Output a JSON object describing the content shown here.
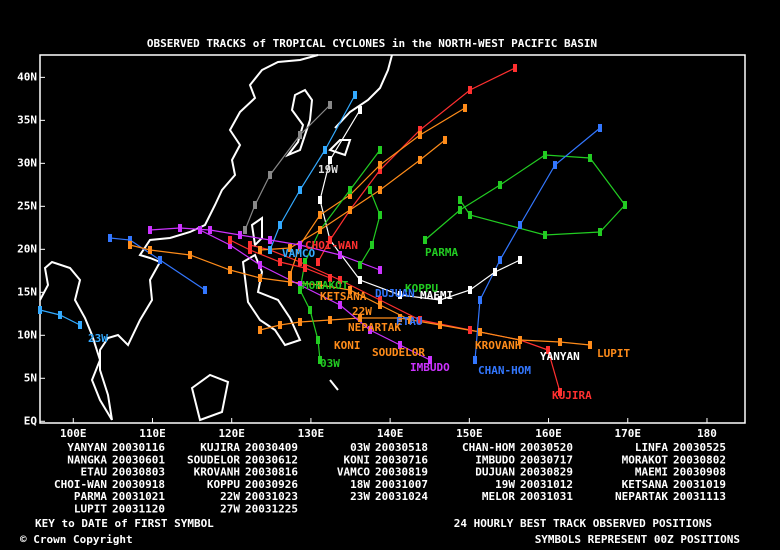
{
  "header": {
    "title": "OBSERVED TRACKS of TROPICAL CYCLONES in the NORTH-WEST PACIFIC BASIN"
  },
  "map": {
    "xlim": [
      95.8,
      184.8
    ],
    "ylim": [
      -0.2,
      42.6
    ],
    "xticks": [
      {
        "value": 100,
        "label": "100E"
      },
      {
        "value": 110,
        "label": "110E"
      },
      {
        "value": 120,
        "label": "120E"
      },
      {
        "value": 130,
        "label": "130E"
      },
      {
        "value": 140,
        "label": "140E"
      },
      {
        "value": 150,
        "label": "150E"
      },
      {
        "value": 160,
        "label": "160E"
      },
      {
        "value": 170,
        "label": "170E"
      },
      {
        "value": 180,
        "label": "180"
      }
    ],
    "yticks": [
      {
        "value": 0,
        "label": "EQ"
      },
      {
        "value": 5,
        "label": "5N"
      },
      {
        "value": 10,
        "label": "10N"
      },
      {
        "value": 15,
        "label": "15N"
      },
      {
        "value": 20,
        "label": "20N"
      },
      {
        "value": 25,
        "label": "25N"
      },
      {
        "value": 30,
        "label": "30N"
      },
      {
        "value": 35,
        "label": "35N"
      },
      {
        "value": 40,
        "label": "40N"
      }
    ],
    "labels": [
      "19W",
      "CHOI-WAN",
      "VAMCO",
      "PARMA",
      "MAEMI",
      "KOPPU",
      "MORAKOT",
      "KETSANA",
      "DUJUAN",
      "ETAU",
      "22W",
      "NEPARTAK",
      "KONI",
      "SOUDELOR",
      "03W",
      "IMBUDO",
      "KROVANH",
      "CHAN-HOM",
      "YANYAN",
      "LUPIT",
      "KUJIRA",
      "23W"
    ]
  },
  "legend": [
    [
      "YANYAN",
      "20030116"
    ],
    [
      "KUJIRA",
      "20030409"
    ],
    [
      "03W",
      "20030518"
    ],
    [
      "CHAN-HOM",
      "20030520"
    ],
    [
      "LINFA",
      "20030525"
    ],
    [
      "NANGKA",
      "20030601"
    ],
    [
      "SOUDELOR",
      "20030612"
    ],
    [
      "KONI",
      "20030716"
    ],
    [
      "IMBUDO",
      "20030717"
    ],
    [
      "MORAKOT",
      "20030802"
    ],
    [
      "ETAU",
      "20030803"
    ],
    [
      "KROVANH",
      "20030816"
    ],
    [
      "VAMCO",
      "20030819"
    ],
    [
      "DUJUAN",
      "20030829"
    ],
    [
      "MAEMI",
      "20030908"
    ],
    [
      "CHOI-WAN",
      "20030918"
    ],
    [
      "KOPPU",
      "20030926"
    ],
    [
      "18W",
      "20031007"
    ],
    [
      "19W",
      "20031012"
    ],
    [
      "KETSANA",
      "20031019"
    ],
    [
      "PARMA",
      "20031021"
    ],
    [
      "22W",
      "20031023"
    ],
    [
      "23W",
      "20031024"
    ],
    [
      "MELOR",
      "20031031"
    ],
    [
      "NEPARTAK",
      "20031113"
    ],
    [
      "LUPIT",
      "20031120"
    ],
    [
      "27W",
      "20031225"
    ]
  ],
  "footer": {
    "key": "KEY to DATE of FIRST SYMBOL",
    "copyright": "© Crown Copyright",
    "note1": "24 HOURLY BEST TRACK OBSERVED POSITIONS",
    "note2": "SYMBOLS REPRESENT 00Z POSITIONS"
  }
}
